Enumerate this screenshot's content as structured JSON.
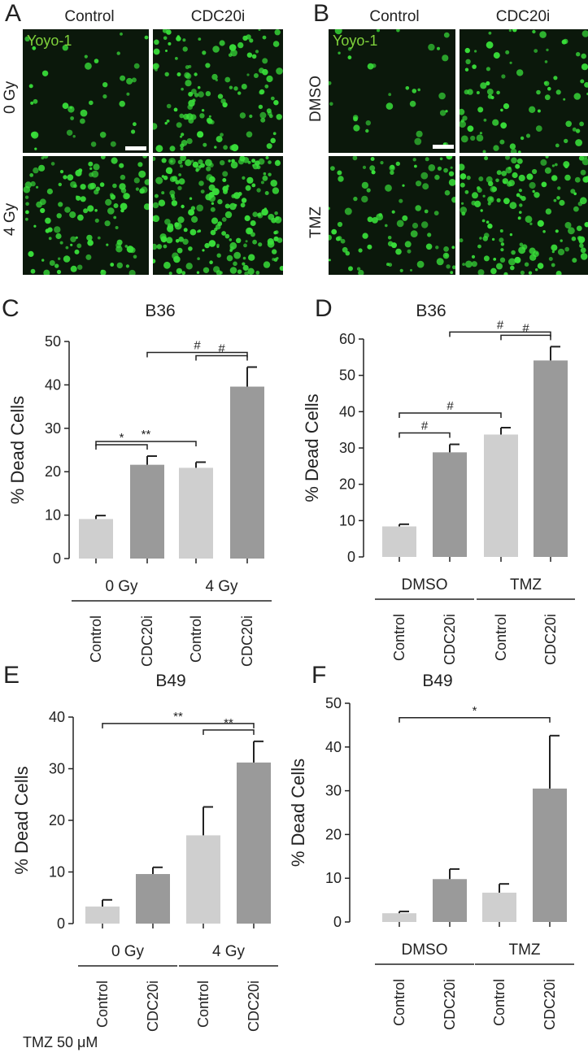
{
  "panels": {
    "A": {
      "letter": "A",
      "cols": [
        "Control",
        "CDC20i"
      ],
      "rows": [
        "0 Gy",
        "4 Gy"
      ],
      "dye": "Yoyo-1"
    },
    "B": {
      "letter": "B",
      "cols": [
        "Control",
        "CDC20i"
      ],
      "rows": [
        "DMSO",
        "TMZ"
      ],
      "dye": "Yoyo-1"
    }
  },
  "colors": {
    "light_bar": "#cfcfcf",
    "dark_bar": "#9a9a9a",
    "cell_green": "#39e03a",
    "dye_label": "#7fd13b"
  },
  "footnote": "TMZ 50 μM",
  "chart_data": [
    {
      "letter": "C",
      "type": "bar",
      "title": "B36",
      "ylabel": "% Dead Cells",
      "ylim": [
        0,
        50
      ],
      "yticks": [
        0,
        10,
        20,
        30,
        40,
        50
      ],
      "categories": [
        "Control",
        "CDC20i",
        "Control",
        "CDC20i"
      ],
      "groups": [
        "0 Gy",
        "4 Gy"
      ],
      "values": [
        9.1,
        21.6,
        20.9,
        39.6
      ],
      "errors": [
        0.8,
        2.0,
        1.3,
        4.5
      ],
      "shades": [
        "light",
        "dark",
        "light",
        "dark"
      ],
      "significance": [
        {
          "from": 0,
          "to": 1,
          "label": "*"
        },
        {
          "from": 0,
          "to": 2,
          "label": "**"
        },
        {
          "from": 2,
          "to": 3,
          "label": "#"
        },
        {
          "from": 1,
          "to": 3,
          "label": "#"
        }
      ]
    },
    {
      "letter": "D",
      "type": "bar",
      "title": "B36",
      "ylabel": "% Dead Cells",
      "ylim": [
        0,
        60
      ],
      "yticks": [
        0,
        10,
        20,
        30,
        40,
        50,
        60
      ],
      "categories": [
        "Control",
        "CDC20i",
        "Control",
        "CDC20i"
      ],
      "groups": [
        "DMSO",
        "TMZ"
      ],
      "values": [
        8.4,
        28.8,
        33.7,
        54.1
      ],
      "errors": [
        0.6,
        2.2,
        1.9,
        3.8
      ],
      "shades": [
        "light",
        "dark",
        "light",
        "dark"
      ],
      "significance": [
        {
          "from": 0,
          "to": 1,
          "label": "#"
        },
        {
          "from": 0,
          "to": 2,
          "label": "#"
        },
        {
          "from": 2,
          "to": 3,
          "label": "#"
        },
        {
          "from": 1,
          "to": 3,
          "label": "#"
        }
      ]
    },
    {
      "letter": "E",
      "type": "bar",
      "title": "B49",
      "ylabel": "% Dead Cells",
      "ylim": [
        0,
        40
      ],
      "yticks": [
        0,
        10,
        20,
        30,
        40
      ],
      "categories": [
        "Control",
        "CDC20i",
        "Control",
        "CDC20i"
      ],
      "groups": [
        "0 Gy",
        "4 Gy"
      ],
      "values": [
        3.3,
        9.6,
        17.1,
        31.2
      ],
      "errors": [
        1.3,
        1.3,
        5.5,
        4.1
      ],
      "shades": [
        "light",
        "dark",
        "light",
        "dark"
      ],
      "significance": [
        {
          "from": 2,
          "to": 3,
          "label": "**"
        },
        {
          "from": 0,
          "to": 3,
          "label": "**"
        }
      ]
    },
    {
      "letter": "F",
      "type": "bar",
      "title": "B49",
      "ylabel": "% Dead Cells",
      "ylim": [
        0,
        50
      ],
      "yticks": [
        0,
        10,
        20,
        30,
        40,
        50
      ],
      "categories": [
        "Control",
        "CDC20i",
        "Control",
        "CDC20i"
      ],
      "groups": [
        "DMSO",
        "TMZ"
      ],
      "values": [
        2.0,
        9.8,
        6.7,
        30.5
      ],
      "errors": [
        0.4,
        2.3,
        2.0,
        12.1
      ],
      "shades": [
        "light",
        "dark",
        "light",
        "dark"
      ],
      "significance": [
        {
          "from": 0,
          "to": 3,
          "label": "*"
        }
      ]
    }
  ]
}
